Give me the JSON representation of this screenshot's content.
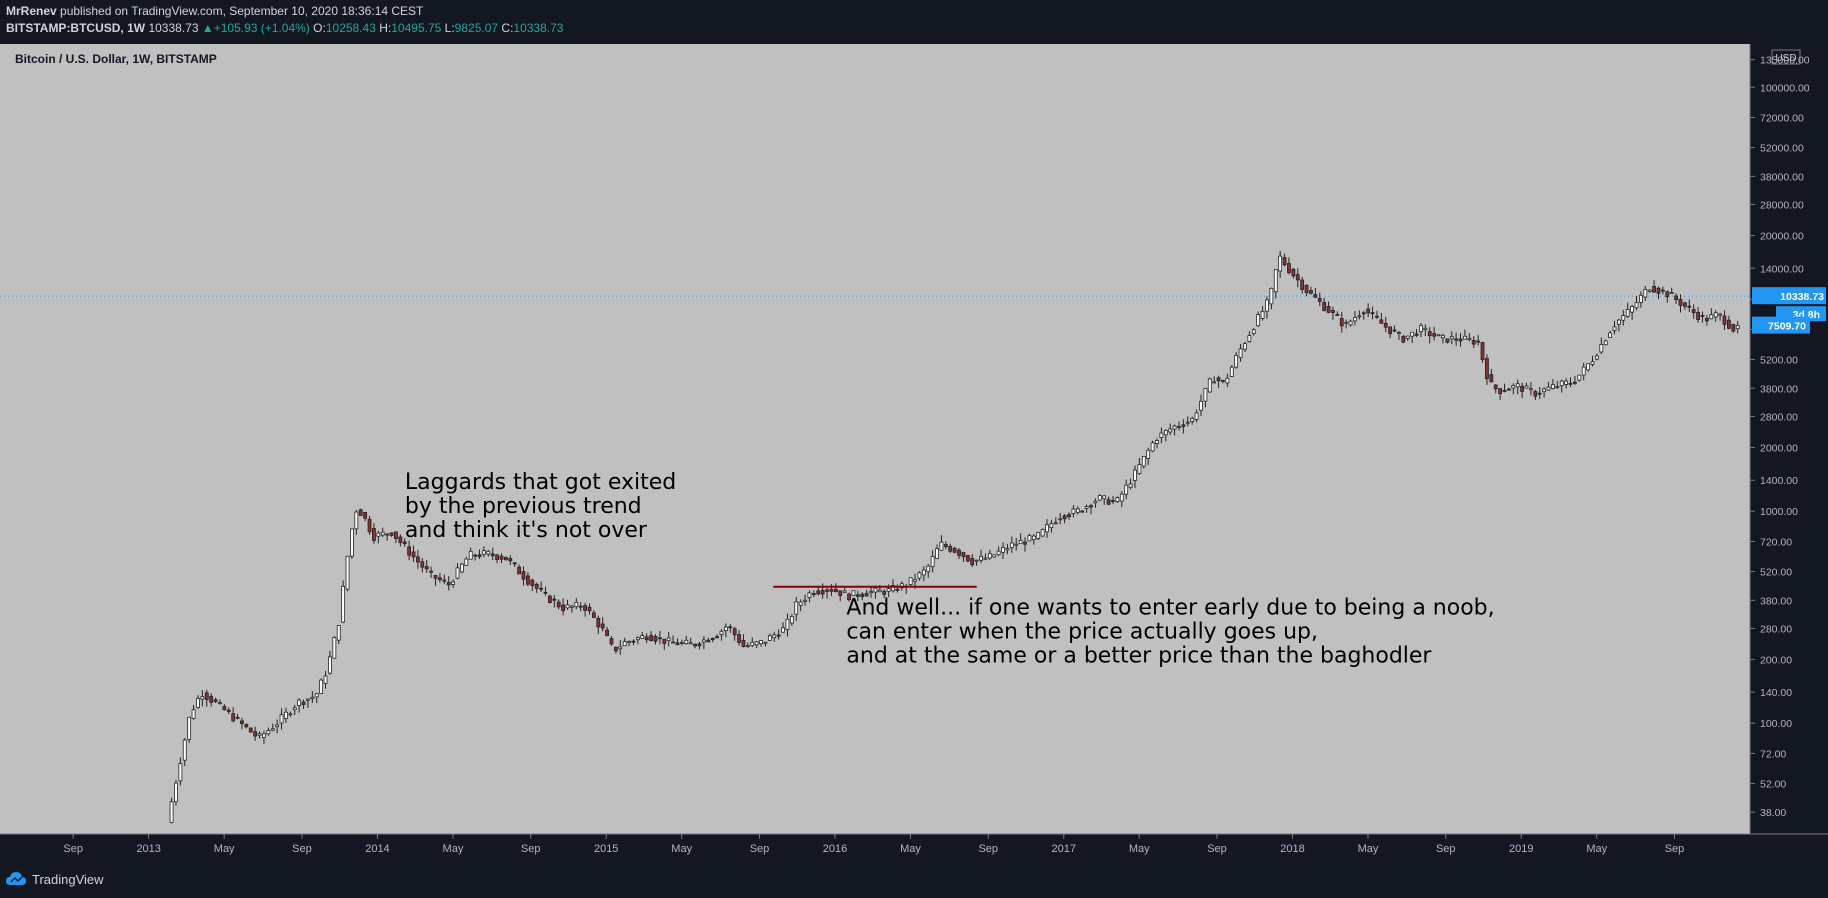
{
  "header": {
    "author": "MrRenev",
    "published_text": "published on TradingView.com, September 10, 2020 18:36:14 CEST",
    "symbol": "BITSTAMP:BTCUSD, 1W",
    "last": "10338.73",
    "change": "+105.93 (+1.04%)",
    "o_label": "O:",
    "o": "10258.43",
    "h_label": "H:",
    "h": "10495.75",
    "l_label": "L:",
    "l": "9825.07",
    "c_label": "C:",
    "c": "10338.73"
  },
  "footer": {
    "brand": "TradingView"
  },
  "colors": {
    "up": "#26a69a",
    "down": "#ef5350",
    "background": "#c0c0c0",
    "frame": "#131722",
    "badge": "#2196f3",
    "hline": "#8b0000"
  },
  "chart_data": {
    "type": "candlestick",
    "title": "Bitcoin / U.S. Dollar, 1W, BITSTAMP",
    "y_scale": "log",
    "ylim": [
      30,
      160000
    ],
    "currency": "USD",
    "y_ticks": [
      38,
      52,
      72,
      100,
      140,
      200,
      280,
      380,
      520,
      720,
      1000,
      1400,
      2000,
      2800,
      3800,
      5200,
      7200,
      10000,
      14000,
      20000,
      28000,
      38000,
      52000,
      72000,
      100000,
      135000
    ],
    "y_tick_labels": [
      "38.00",
      "52.00",
      "72.00",
      "100.00",
      "140.00",
      "200.00",
      "280.00",
      "380.00",
      "520.00",
      "720.00",
      "1000.00",
      "1400.00",
      "2000.00",
      "2800.00",
      "3800.00",
      "5200.00",
      "7200.00",
      "10000.00",
      "14000.00",
      "20000.00",
      "28000.00",
      "38000.00",
      "52000.00",
      "72000.00",
      "100000.00",
      "135000.00"
    ],
    "x_ticks": [
      {
        "label": "Sep",
        "t": 2012.67
      },
      {
        "label": "2013",
        "t": 2013.0
      },
      {
        "label": "May",
        "t": 2013.33
      },
      {
        "label": "Sep",
        "t": 2013.67
      },
      {
        "label": "2014",
        "t": 2014.0
      },
      {
        "label": "May",
        "t": 2014.33
      },
      {
        "label": "Sep",
        "t": 2014.67
      },
      {
        "label": "2015",
        "t": 2015.0
      },
      {
        "label": "May",
        "t": 2015.33
      },
      {
        "label": "Sep",
        "t": 2015.67
      },
      {
        "label": "2016",
        "t": 2016.0
      },
      {
        "label": "May",
        "t": 2016.33
      },
      {
        "label": "Sep",
        "t": 2016.67
      },
      {
        "label": "2017",
        "t": 2017.0
      },
      {
        "label": "May",
        "t": 2017.33
      },
      {
        "label": "Sep",
        "t": 2017.67
      },
      {
        "label": "2018",
        "t": 2018.0
      },
      {
        "label": "May",
        "t": 2018.33
      },
      {
        "label": "Sep",
        "t": 2018.67
      },
      {
        "label": "2019",
        "t": 2019.0
      },
      {
        "label": "May",
        "t": 2019.33
      },
      {
        "label": "Sep",
        "t": 2019.67
      }
    ],
    "xlim": [
      2012.35,
      2020.0
    ],
    "price_badges": [
      {
        "text": "10338.73",
        "value": 10338.73
      },
      {
        "text": "3d 8h"
      },
      {
        "text": "7509.70",
        "value": 7509.7
      }
    ],
    "last_price_line": 10338.73,
    "horizontal_line": {
      "y": 440,
      "x0": 2015.73,
      "x1": 2016.62
    },
    "annotations": [
      {
        "lines": [
          "Laggards that got exited",
          "by the previous trend",
          "and think it's not over"
        ],
        "t": 2014.12,
        "y": 1270
      },
      {
        "lines": [
          "And well... if one wants to enter early due to being a noob,",
          "can enter when the price actually goes up,",
          "and at the same or a better price than the baghodler"
        ],
        "t": 2016.05,
        "y": 325
      }
    ],
    "series": [
      {
        "name": "BTCUSD",
        "points": [
          [
            2013.1,
            34
          ],
          [
            2013.2,
            110
          ],
          [
            2013.25,
            140
          ],
          [
            2013.33,
            120
          ],
          [
            2013.42,
            100
          ],
          [
            2013.5,
            85
          ],
          [
            2013.58,
            100
          ],
          [
            2013.67,
            125
          ],
          [
            2013.75,
            135
          ],
          [
            2013.8,
            180
          ],
          [
            2013.85,
            300
          ],
          [
            2013.9,
            760
          ],
          [
            2013.93,
            1050
          ],
          [
            2013.97,
            900
          ],
          [
            2014.0,
            760
          ],
          [
            2014.08,
            800
          ],
          [
            2014.17,
            620
          ],
          [
            2014.25,
            500
          ],
          [
            2014.33,
            450
          ],
          [
            2014.42,
            620
          ],
          [
            2014.5,
            630
          ],
          [
            2014.58,
            600
          ],
          [
            2014.67,
            480
          ],
          [
            2014.75,
            400
          ],
          [
            2014.83,
            350
          ],
          [
            2014.92,
            360
          ],
          [
            2015.0,
            280
          ],
          [
            2015.05,
            220
          ],
          [
            2015.1,
            240
          ],
          [
            2015.2,
            260
          ],
          [
            2015.3,
            240
          ],
          [
            2015.4,
            235
          ],
          [
            2015.5,
            260
          ],
          [
            2015.55,
            290
          ],
          [
            2015.62,
            230
          ],
          [
            2015.7,
            240
          ],
          [
            2015.8,
            280
          ],
          [
            2015.85,
            360
          ],
          [
            2015.92,
            420
          ],
          [
            2016.0,
            430
          ],
          [
            2016.08,
            400
          ],
          [
            2016.17,
            415
          ],
          [
            2016.25,
            420
          ],
          [
            2016.33,
            450
          ],
          [
            2016.42,
            530
          ],
          [
            2016.48,
            700
          ],
          [
            2016.55,
            650
          ],
          [
            2016.62,
            580
          ],
          [
            2016.7,
            610
          ],
          [
            2016.8,
            700
          ],
          [
            2016.9,
            750
          ],
          [
            2017.0,
            950
          ],
          [
            2017.08,
            1000
          ],
          [
            2017.17,
            1150
          ],
          [
            2017.25,
            1100
          ],
          [
            2017.33,
            1500
          ],
          [
            2017.42,
            2200
          ],
          [
            2017.5,
            2500
          ],
          [
            2017.58,
            2700
          ],
          [
            2017.67,
            4300
          ],
          [
            2017.72,
            4000
          ],
          [
            2017.78,
            5500
          ],
          [
            2017.85,
            7500
          ],
          [
            2017.92,
            10000
          ],
          [
            2017.96,
            16000
          ],
          [
            2018.0,
            14000
          ],
          [
            2018.08,
            11000
          ],
          [
            2018.17,
            9000
          ],
          [
            2018.25,
            7500
          ],
          [
            2018.33,
            9000
          ],
          [
            2018.42,
            7500
          ],
          [
            2018.5,
            6500
          ],
          [
            2018.58,
            7200
          ],
          [
            2018.67,
            6500
          ],
          [
            2018.75,
            6500
          ],
          [
            2018.83,
            6300
          ],
          [
            2018.88,
            4000
          ],
          [
            2018.92,
            3700
          ],
          [
            2019.0,
            3900
          ],
          [
            2019.08,
            3600
          ],
          [
            2019.17,
            3900
          ],
          [
            2019.25,
            4100
          ],
          [
            2019.33,
            5200
          ],
          [
            2019.42,
            7500
          ],
          [
            2019.5,
            9000
          ],
          [
            2019.58,
            11500
          ],
          [
            2019.67,
            10500
          ],
          [
            2019.75,
            9000
          ],
          [
            2019.82,
            8000
          ],
          [
            2019.88,
            8500
          ],
          [
            2019.95,
            7200
          ]
        ]
      }
    ]
  }
}
